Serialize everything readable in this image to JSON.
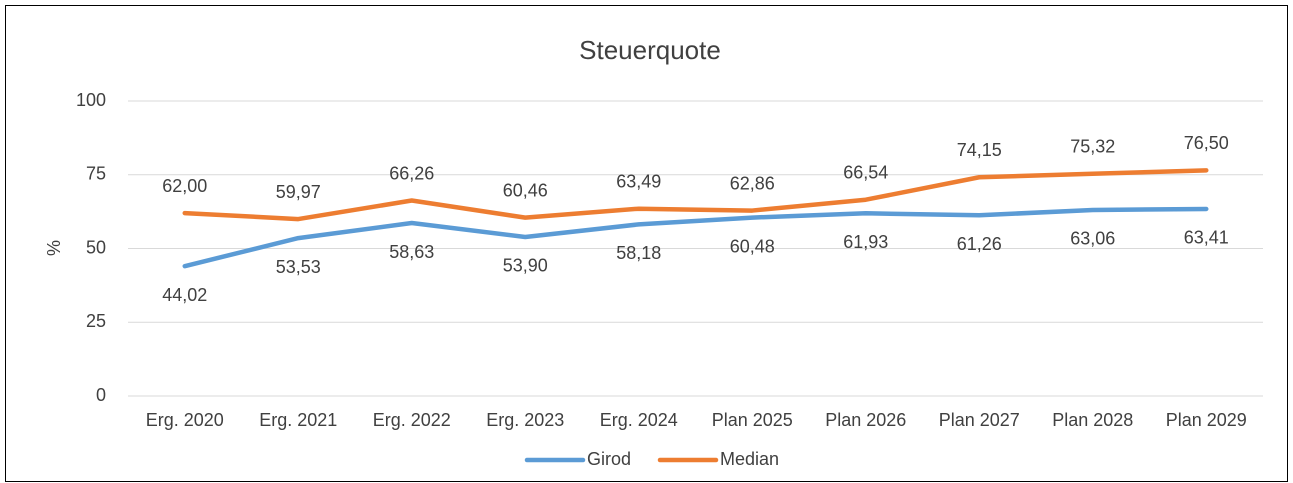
{
  "chart_data": {
    "type": "line",
    "title": "Steuerquote",
    "y_label": "%",
    "categories": [
      "Erg. 2020",
      "Erg. 2021",
      "Erg. 2022",
      "Erg. 2023",
      "Erg. 2024",
      "Plan 2025",
      "Plan 2026",
      "Plan 2027",
      "Plan 2028",
      "Plan 2029"
    ],
    "series": [
      {
        "name": "Girod",
        "color": "#5b9bd5",
        "values": [
          44.02,
          53.53,
          58.63,
          53.9,
          58.18,
          60.48,
          61.93,
          61.26,
          63.06,
          63.41
        ],
        "value_labels": [
          "44,02",
          "53,53",
          "58,63",
          "53,90",
          "58,18",
          "60,48",
          "61,93",
          "61,26",
          "63,06",
          "63,41"
        ]
      },
      {
        "name": "Median",
        "color": "#ed7d31",
        "values": [
          62.0,
          59.97,
          66.26,
          60.46,
          63.49,
          62.86,
          66.54,
          74.15,
          75.32,
          76.5
        ],
        "value_labels": [
          "62,00",
          "59,97",
          "66,26",
          "60,46",
          "63,49",
          "62,86",
          "66,54",
          "74,15",
          "75,32",
          "76,50"
        ]
      }
    ],
    "ylim": [
      0,
      100
    ],
    "yticks": [
      0,
      25,
      50,
      75,
      100
    ],
    "grid": true,
    "legend": "bottom"
  }
}
